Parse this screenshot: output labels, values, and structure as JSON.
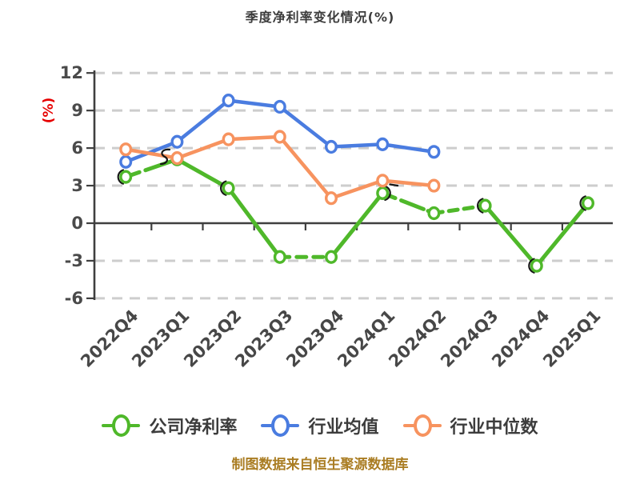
{
  "footer": {
    "text": "制图数据来自恒生聚源数据库"
  },
  "colors": {
    "company_green": "#4fb82a",
    "industry_avg_blue": "#4a7ce0",
    "industry_median_orange": "#f7935f",
    "y_unit_red": "#e60000",
    "footer_gold": "#aa7d23",
    "grid_gray": "#cdcdcd",
    "axis_dark": "#3f3f3f",
    "title_gray": "#3c3c3c"
  },
  "chart_data": {
    "type": "line",
    "title": "季度净利率变化情况(%)",
    "ylabel": "(%)",
    "xlabel": "",
    "categories": [
      "2022Q4",
      "2023Q1",
      "2023Q2",
      "2023Q3",
      "2023Q4",
      "2024Q1",
      "2024Q2",
      "2024Q3",
      "2024Q4",
      "2025Q1"
    ],
    "series": [
      {
        "name": "公司净利率",
        "color": "#4fb82a",
        "values": [
          3.7,
          5.1,
          2.8,
          -2.7,
          -2.7,
          2.4,
          0.8,
          1.4,
          -3.4,
          1.6
        ],
        "dashed_segments": [
          [
            0,
            1
          ],
          [
            3,
            4
          ],
          [
            5,
            6
          ],
          [
            6,
            7
          ]
        ]
      },
      {
        "name": "行业均值",
        "color": "#4a7ce0",
        "values": [
          4.9,
          6.5,
          9.8,
          9.3,
          6.1,
          6.3,
          5.7,
          null,
          null,
          null
        ],
        "dashed_segments": []
      },
      {
        "name": "行业中位数",
        "color": "#f7935f",
        "values": [
          5.9,
          5.2,
          6.7,
          6.9,
          2.0,
          3.4,
          3.0,
          null,
          null,
          null
        ],
        "dashed_segments": []
      }
    ],
    "yticks": [
      12,
      9,
      6,
      3,
      0,
      -3,
      -6
    ],
    "ylim": [
      -6,
      12
    ],
    "grid": "dashed horizontal gridlines, solid line at zero",
    "legend_position": "bottom",
    "style": "hand-drawn sketch style with white-filled circle markers"
  }
}
